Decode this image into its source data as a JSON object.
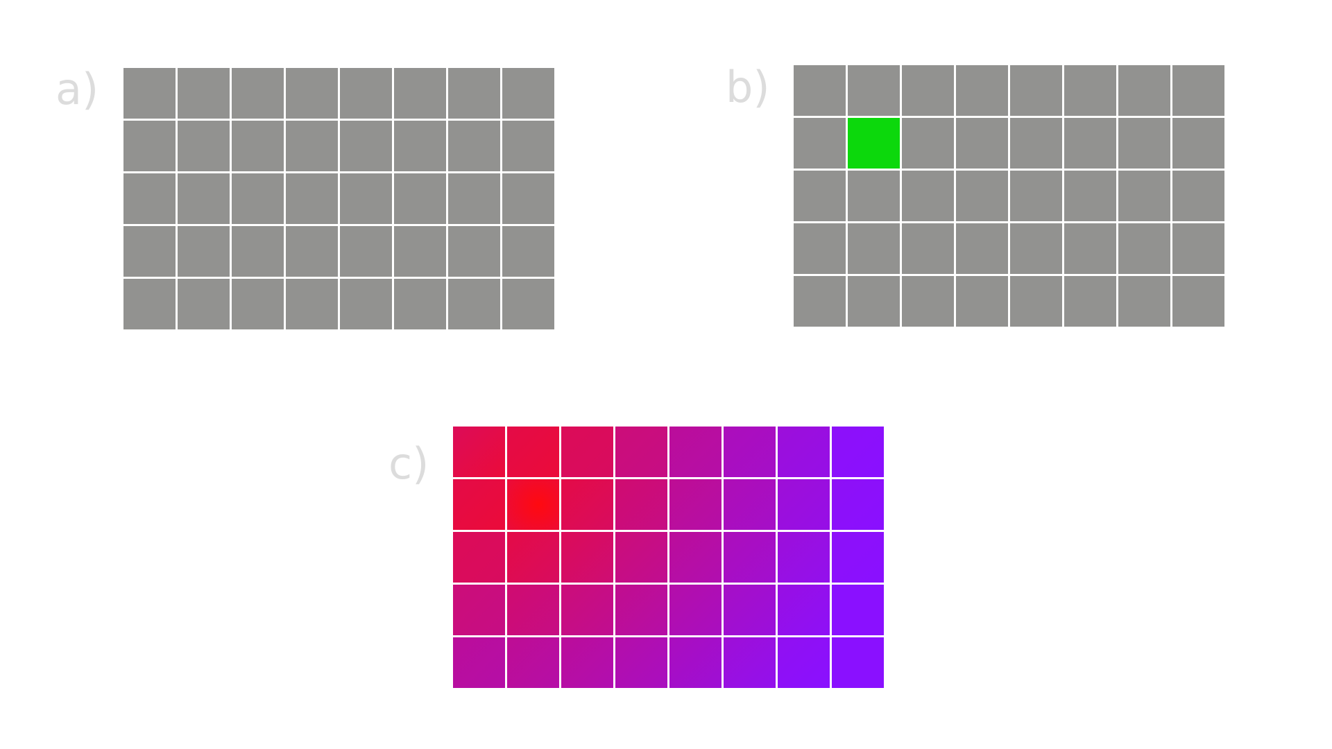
{
  "panels": [
    {
      "id": "a",
      "label": "a)",
      "rows": 5,
      "cols": 8,
      "mode": "uniform",
      "base_color": "#929290"
    },
    {
      "id": "b",
      "label": "b)",
      "rows": 5,
      "cols": 8,
      "mode": "highlight",
      "base_color": "#929290",
      "highlight_color": "#0cd80c",
      "highlight_cell": {
        "row": 1,
        "col": 1
      }
    },
    {
      "id": "c",
      "label": "c)",
      "rows": 5,
      "cols": 8,
      "mode": "gradient",
      "source_cell": {
        "row": 1,
        "col": 1
      },
      "near_color": "#ff0a10",
      "far_color": "#8a10ff"
    }
  ]
}
